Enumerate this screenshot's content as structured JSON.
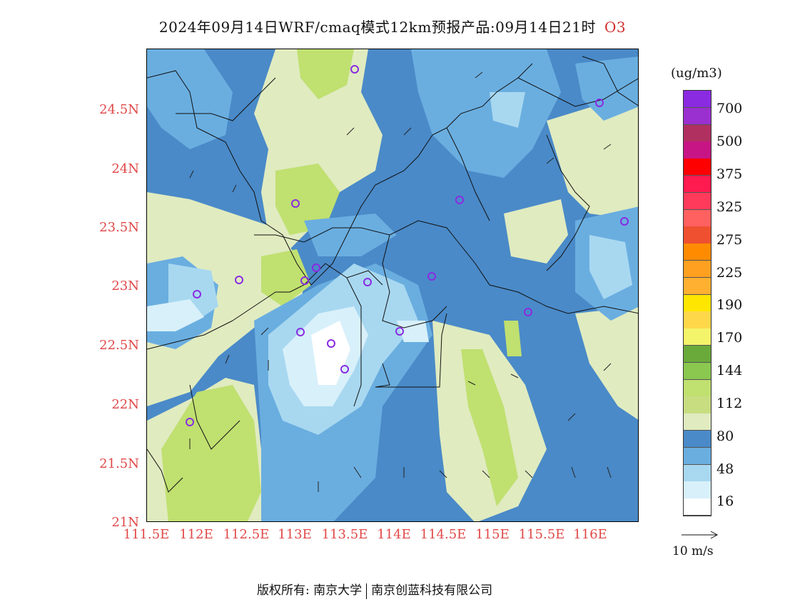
{
  "title": "2024年09月14日WRF/cmaq模式12km预报产品:09月14日21时",
  "species": "O3",
  "lat_labels": [
    "24.5N",
    "24N",
    "23.5N",
    "23N",
    "22.5N",
    "22N",
    "21.5N",
    "21N"
  ],
  "lon_labels": [
    "111.5E",
    "112E",
    "112.5E",
    "113E",
    "113.5E",
    "114E",
    "114.5E",
    "115E",
    "115.5E",
    "116E"
  ],
  "legend": {
    "unit": "(ug/m3)",
    "labels": [
      "700",
      "500",
      "375",
      "325",
      "275",
      "225",
      "190",
      "170",
      "144",
      "112",
      "80",
      "48",
      "16"
    ],
    "colors": [
      "#8a2be2",
      "#9b30d0",
      "#b03060",
      "#c71585",
      "#ff0000",
      "#ff1a50",
      "#ff3a5a",
      "#ff6060",
      "#ee5030",
      "#ff8c00",
      "#ffa020",
      "#ffb030",
      "#ffe600",
      "#ffd84a",
      "#f4f46a",
      "#6aaa3a",
      "#8ac850",
      "#c0e070",
      "#c8dd80",
      "#e0ebc0",
      "#4a8ac8",
      "#6aaee0",
      "#a8d8f0",
      "#d8f0fa",
      "#ffffff"
    ]
  },
  "wind_scale_label": "10 m/s",
  "footer": {
    "left": "版权所有: 南京大学",
    "right": "南京创蓝科技有限公司"
  },
  "map_colors": {
    "band_80_112": "#e0ebc0",
    "band_112_144": "#c0e070",
    "band_48_80": "#4a8ac8",
    "band_32_48": "#6aaee0",
    "band_16_32": "#a8d8f0",
    "band_0_16": "#d8f0fa",
    "station_marker": "#8a2be2"
  }
}
